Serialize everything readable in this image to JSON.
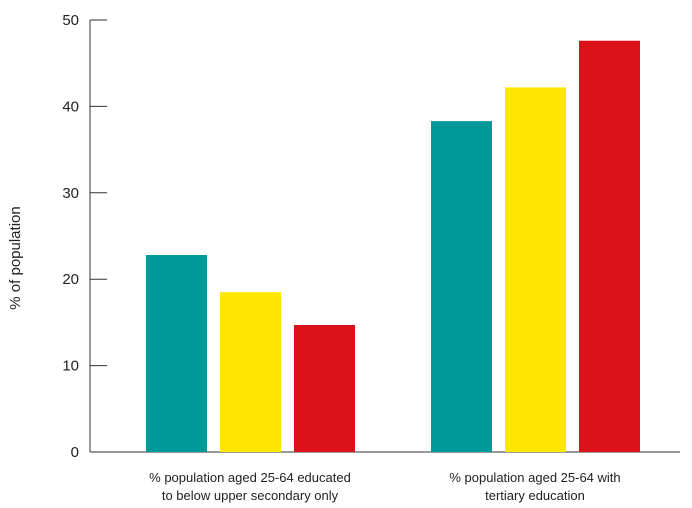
{
  "chart_data": {
    "type": "bar",
    "ylabel": "% of population",
    "xlabel": "",
    "ylim": [
      0,
      50
    ],
    "yticks": [
      0,
      10,
      20,
      30,
      40,
      50
    ],
    "categories": [
      [
        "% population aged 25-64 educated",
        "to below upper secondary only"
      ],
      [
        "% population aged 25-64 with",
        "tertiary education"
      ]
    ],
    "series": [
      {
        "color": "#009999",
        "values": [
          22.8,
          38.3
        ]
      },
      {
        "color": "#FFE600",
        "values": [
          18.5,
          42.2
        ]
      },
      {
        "color": "#DD1119",
        "values": [
          14.7,
          47.6
        ]
      }
    ],
    "grid": false,
    "legend": "none"
  }
}
